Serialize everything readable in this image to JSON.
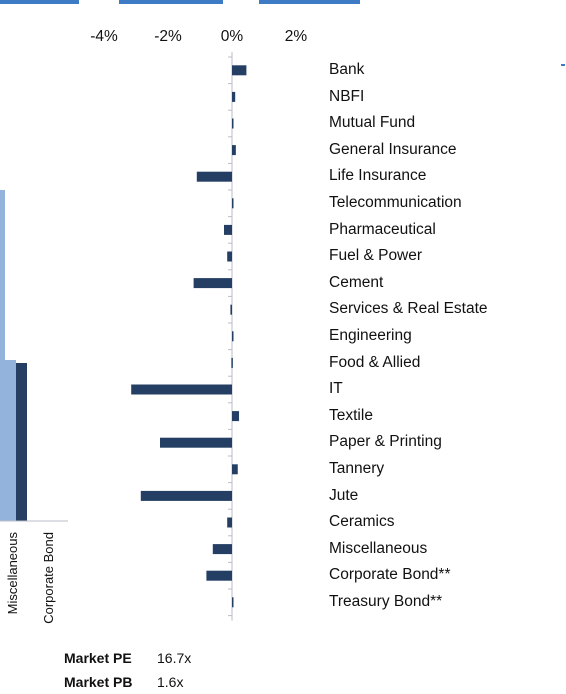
{
  "colors": {
    "bar": "#243f63",
    "light_bar": "#93b3dc",
    "dark_bar": "#243f63",
    "axis": "#b8bec8",
    "accent": "#3d7cc4"
  },
  "left_chart": {
    "type": "bar",
    "categories": [
      "Miscellaneous",
      "Corporate Bond"
    ],
    "series": [
      {
        "values": [
          null,
          null
        ]
      },
      {
        "values": [
          null,
          null
        ]
      }
    ]
  },
  "chart_data": {
    "type": "bar",
    "orientation": "horizontal",
    "categories": [
      "Bank",
      "NBFI",
      "Mutual Fund",
      "General Insurance",
      "Life Insurance",
      "Telecommunication",
      "Pharmaceutical",
      "Fuel & Power",
      "Cement",
      "Services & Real Estate",
      "Engineering",
      "Food & Allied",
      "IT",
      "Textile",
      "Paper & Printing",
      "Tannery",
      "Jute",
      "Ceramics",
      "Miscellaneous",
      "Corporate Bond**",
      "Treasury Bond**"
    ],
    "values": [
      0.45,
      0.1,
      0.02,
      0.12,
      -1.1,
      0.0,
      -0.25,
      -0.15,
      -1.2,
      -0.05,
      0.0,
      -0.02,
      -3.15,
      0.22,
      -2.25,
      0.18,
      -2.85,
      -0.15,
      -0.6,
      -0.8,
      0.0
    ],
    "x_ticks": [
      "-4%",
      "-2%",
      "0%",
      "2%"
    ],
    "x_tick_values": [
      -4,
      -2,
      0,
      2
    ],
    "xlim": [
      -4,
      2
    ],
    "grid": false
  },
  "stats": [
    {
      "label": "Market PE",
      "value": "16.7x"
    },
    {
      "label": "Market PB",
      "value": "1.6x"
    }
  ]
}
